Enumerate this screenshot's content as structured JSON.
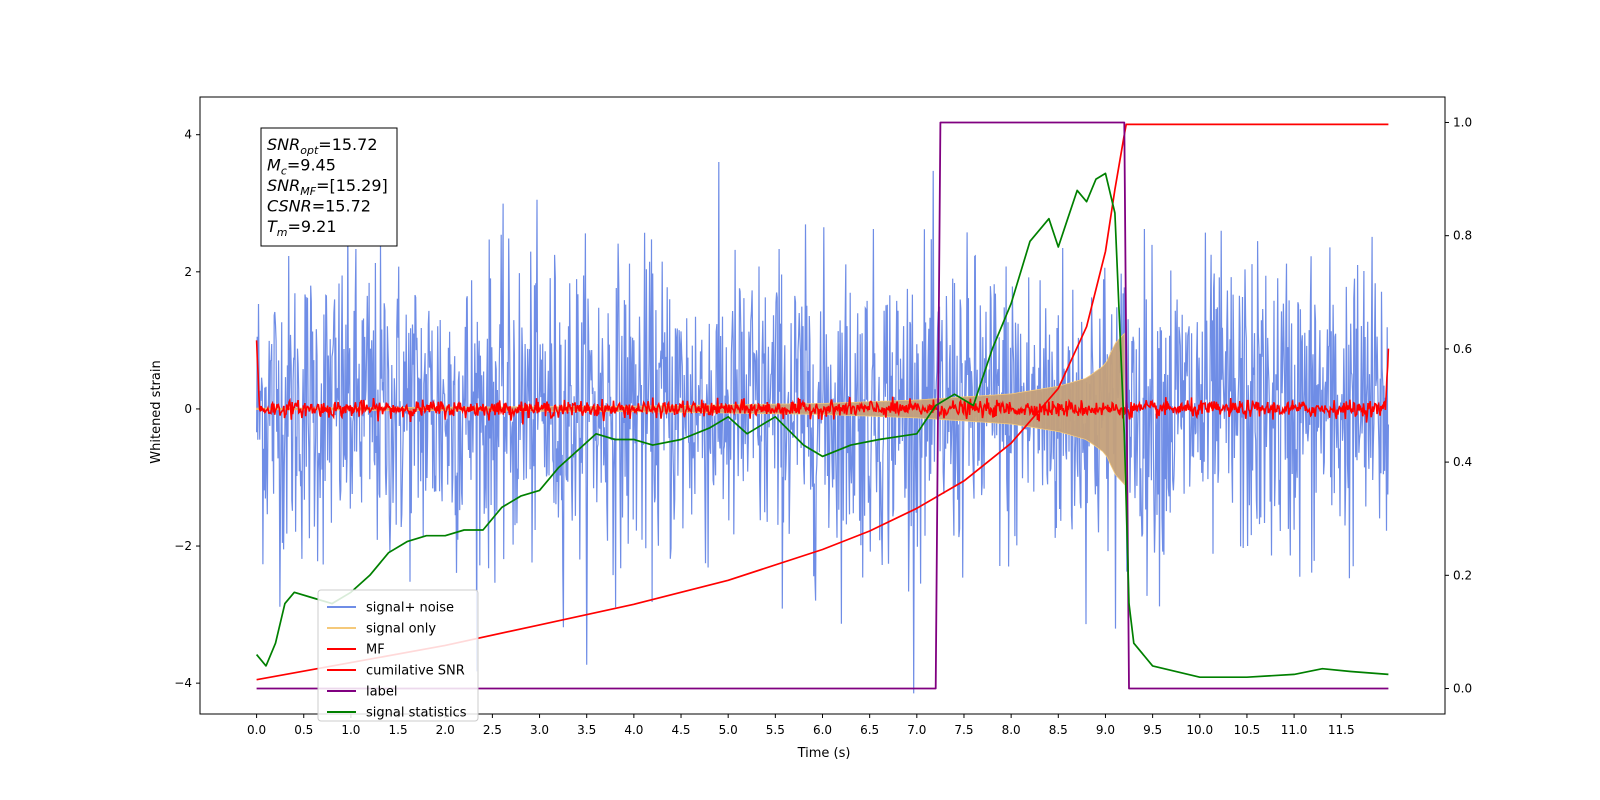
{
  "chart_data": {
    "type": "line",
    "xlabel": "Time (s)",
    "ylabel": "Whitened strain",
    "xlim": [
      -0.6,
      12.6
    ],
    "ylim_left": [
      -4.45,
      4.55
    ],
    "ylim_right": [
      -0.045,
      1.045
    ],
    "x_ticks": [
      0.0,
      0.5,
      1.0,
      1.5,
      2.0,
      2.5,
      3.0,
      3.5,
      4.0,
      4.5,
      5.0,
      5.5,
      6.0,
      6.5,
      7.0,
      7.5,
      8.0,
      8.5,
      9.0,
      9.5,
      10.0,
      10.5,
      11.0,
      11.5
    ],
    "x_tick_labels": [
      "0.0",
      "0.5",
      "1.0",
      "1.5",
      "2.0",
      "2.5",
      "3.0",
      "3.5",
      "4.0",
      "4.5",
      "5.0",
      "5.5",
      "6.0",
      "6.5",
      "7.0",
      "7.5",
      "8.0",
      "8.5",
      "9.0",
      "9.5",
      "10.0",
      "10.5",
      "11.0",
      "11.5"
    ],
    "y_left_ticks": [
      -4,
      -2,
      0,
      2,
      4
    ],
    "y_left_tick_labels": [
      "−4",
      "−2",
      "0",
      "2",
      "4"
    ],
    "y_right_ticks": [
      0.0,
      0.2,
      0.4,
      0.6,
      0.8,
      1.0
    ],
    "y_right_tick_labels": [
      "0.0",
      "0.2",
      "0.4",
      "0.6",
      "0.8",
      "1.0"
    ],
    "grid": false,
    "legend_position": "lower-left",
    "annotation": {
      "position": "top-left",
      "lines": [
        {
          "main": "SNR",
          "sub": "opt",
          "rest": "=15.72"
        },
        {
          "main": "M",
          "sub": "c",
          "rest": "=9.45"
        },
        {
          "main": "SNR",
          "sub": "MF",
          "rest": "=[15.29]"
        },
        {
          "main": "CSNR",
          "sub": "",
          "rest": "=15.72"
        },
        {
          "main": "T",
          "sub": "m",
          "rest": "=9.21"
        }
      ]
    },
    "series": [
      {
        "name": "signal+ noise",
        "axis": "left",
        "kind": "noise",
        "color": "#6f8de6",
        "x_range": [
          0.0,
          12.0
        ],
        "typical_amplitude": 1.1,
        "peak_envelope": 4.15
      },
      {
        "name": "signal only",
        "axis": "left",
        "kind": "chirp",
        "color": "#f5c97a",
        "fill_color": "#c4a07a",
        "x_range": [
          0.0,
          9.2
        ],
        "envelope": {
          "x": [
            0.0,
            4.0,
            6.0,
            7.0,
            8.0,
            8.5,
            8.8,
            9.0,
            9.1,
            9.2
          ],
          "y": [
            0.01,
            0.04,
            0.08,
            0.13,
            0.22,
            0.33,
            0.45,
            0.65,
            0.95,
            1.1
          ]
        }
      },
      {
        "name": "MF",
        "axis": "left",
        "kind": "noise",
        "color": "#ff0000",
        "x_range": [
          0.0,
          12.0
        ],
        "typical_amplitude": 0.06,
        "edge_values": {
          "start": 1.0,
          "end": 0.88
        }
      },
      {
        "name": "cumilative SNR",
        "axis": "left",
        "kind": "line",
        "color": "#ff0000",
        "x": [
          0.0,
          1.0,
          2.0,
          3.0,
          4.0,
          5.0,
          6.0,
          6.5,
          7.0,
          7.5,
          8.0,
          8.5,
          8.8,
          9.0,
          9.1,
          9.2,
          9.22,
          12.0
        ],
        "y": [
          -3.95,
          -3.7,
          -3.45,
          -3.15,
          -2.85,
          -2.5,
          -2.05,
          -1.78,
          -1.45,
          -1.05,
          -0.5,
          0.3,
          1.2,
          2.3,
          3.2,
          4.0,
          4.15,
          4.15
        ]
      },
      {
        "name": "label",
        "axis": "right",
        "kind": "line",
        "color": "#800080",
        "x": [
          0.0,
          7.2,
          7.25,
          9.2,
          9.25,
          12.0
        ],
        "y": [
          0.0,
          0.0,
          1.0,
          1.0,
          0.0,
          0.0
        ]
      },
      {
        "name": "signal statistics",
        "axis": "right",
        "kind": "line",
        "color": "#008000",
        "x": [
          0.0,
          0.1,
          0.2,
          0.3,
          0.4,
          0.6,
          0.8,
          1.0,
          1.2,
          1.4,
          1.6,
          1.8,
          2.0,
          2.2,
          2.4,
          2.6,
          2.8,
          3.0,
          3.2,
          3.4,
          3.6,
          3.8,
          4.0,
          4.2,
          4.5,
          4.8,
          5.0,
          5.2,
          5.5,
          5.8,
          6.0,
          6.3,
          6.6,
          7.0,
          7.2,
          7.4,
          7.6,
          7.8,
          8.0,
          8.2,
          8.4,
          8.5,
          8.6,
          8.7,
          8.8,
          8.9,
          9.0,
          9.1,
          9.2,
          9.25,
          9.3,
          9.5,
          10.0,
          10.5,
          11.0,
          11.3,
          11.6,
          12.0
        ],
        "y": [
          0.06,
          0.04,
          0.08,
          0.15,
          0.17,
          0.16,
          0.15,
          0.17,
          0.2,
          0.24,
          0.26,
          0.27,
          0.27,
          0.28,
          0.28,
          0.32,
          0.34,
          0.35,
          0.39,
          0.42,
          0.45,
          0.44,
          0.44,
          0.43,
          0.44,
          0.46,
          0.48,
          0.45,
          0.48,
          0.43,
          0.41,
          0.43,
          0.44,
          0.45,
          0.5,
          0.52,
          0.5,
          0.6,
          0.68,
          0.79,
          0.83,
          0.78,
          0.83,
          0.88,
          0.86,
          0.9,
          0.91,
          0.84,
          0.45,
          0.15,
          0.08,
          0.04,
          0.02,
          0.02,
          0.025,
          0.035,
          0.03,
          0.025
        ]
      }
    ]
  }
}
